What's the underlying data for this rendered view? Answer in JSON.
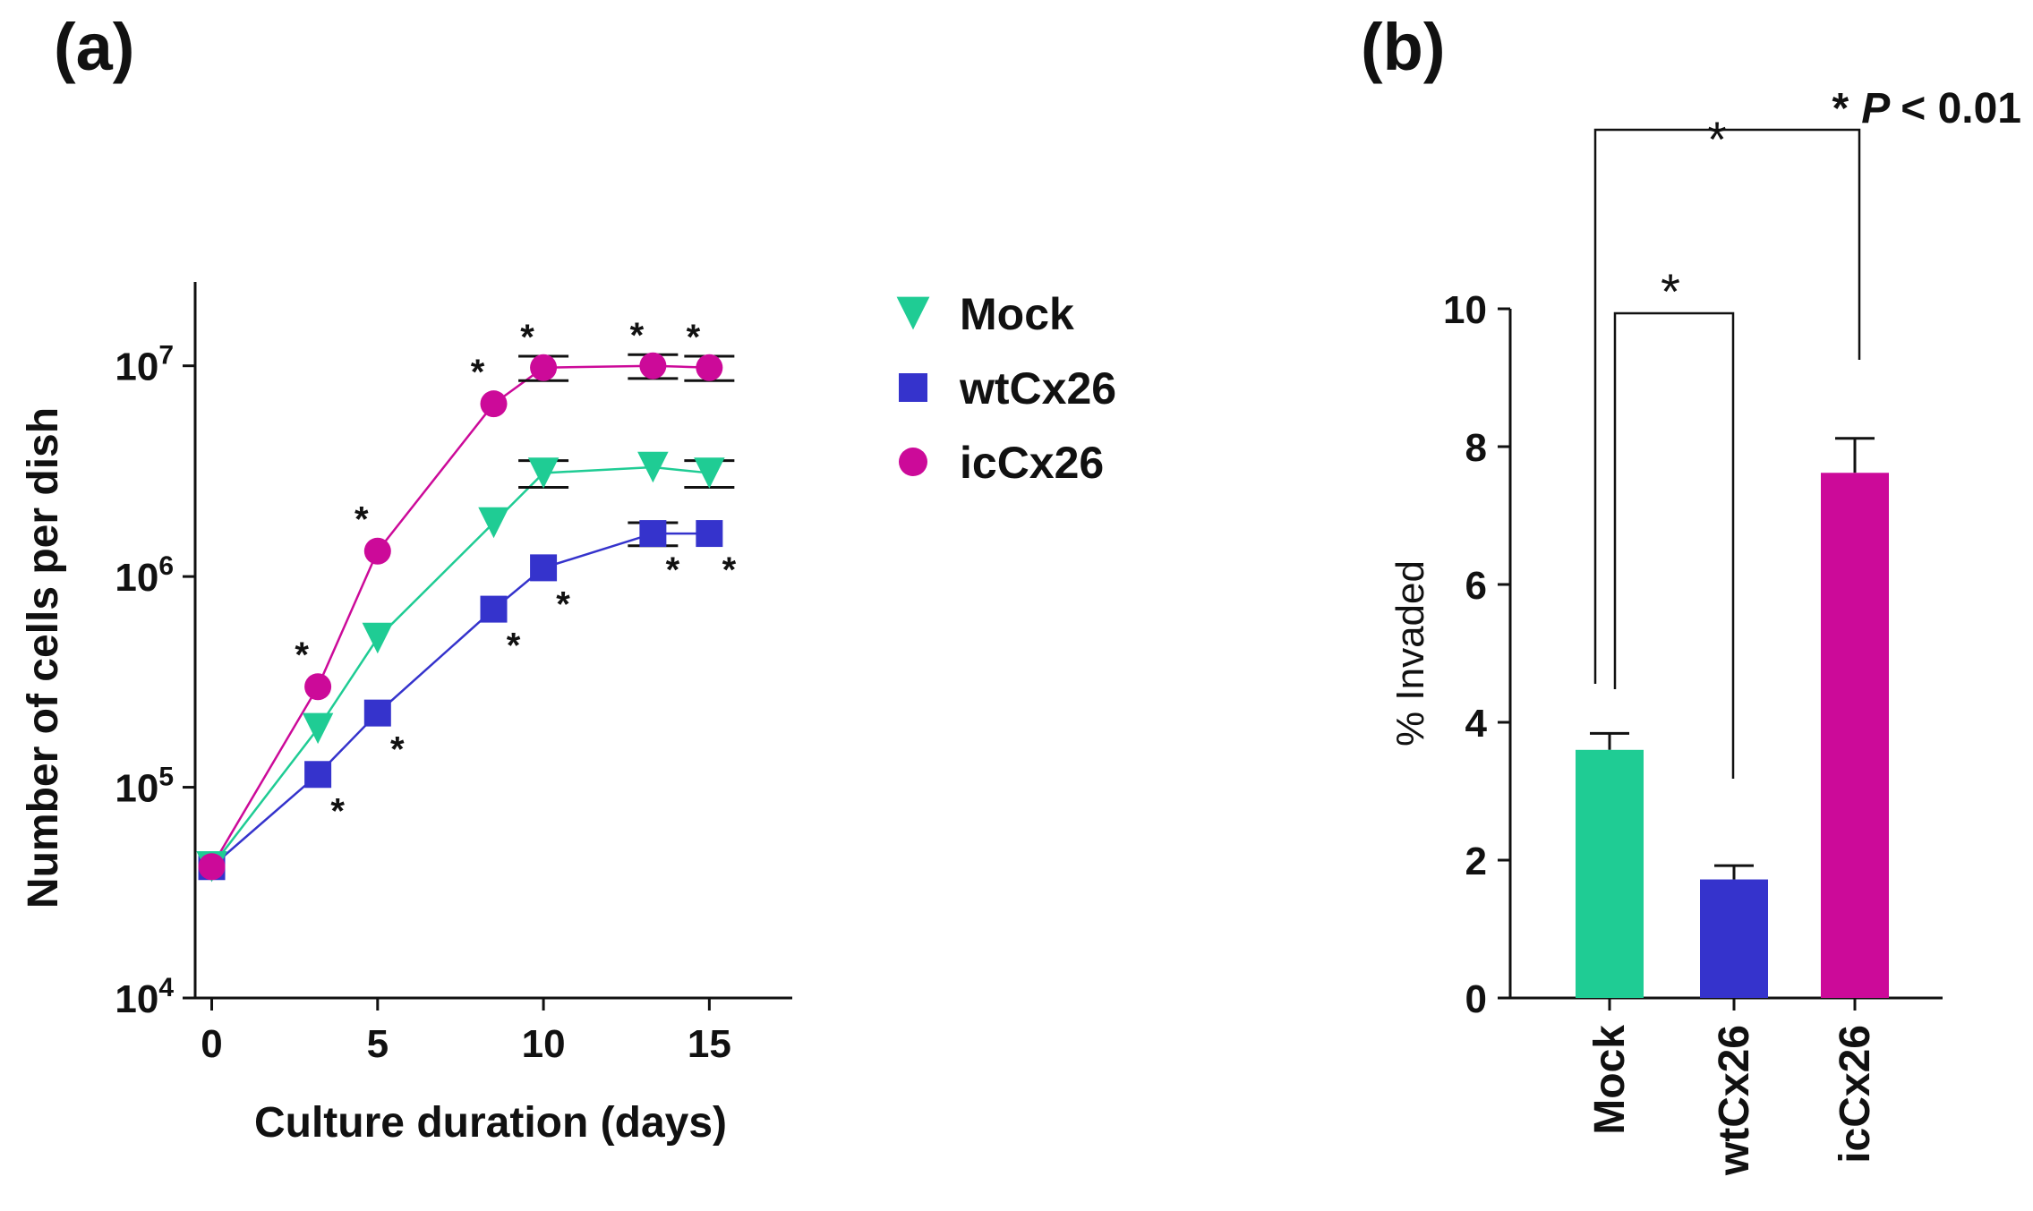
{
  "chart_data": [
    {
      "id": "a",
      "type": "line",
      "panel_label": "(a)",
      "xlabel": "Culture duration (days)",
      "ylabel": "Number of cells per dish",
      "yscale": "log",
      "xlim": [
        -0.5,
        17.5
      ],
      "ylim": [
        10000,
        25000000
      ],
      "x_ticks": [
        0,
        5,
        10,
        15
      ],
      "x_tick_labels": [
        "0",
        "5",
        "10",
        "15"
      ],
      "y_ticks": [
        {
          "value": 10000,
          "base": "10",
          "exp": "4"
        },
        {
          "value": 100000,
          "base": "10",
          "exp": "5"
        },
        {
          "value": 1000000,
          "base": "10",
          "exp": "6"
        },
        {
          "value": 10000000,
          "base": "10",
          "exp": "7"
        }
      ],
      "legend_position": "right",
      "series": [
        {
          "name": "Mock",
          "color": "#1fcc94",
          "marker": "triangle-down",
          "x": [
            0,
            3.2,
            5,
            8.5,
            10,
            13.3,
            15
          ],
          "y": [
            42000,
            190000,
            510000,
            1800000,
            3100000,
            3300000,
            3100000
          ],
          "err": [
            0,
            0,
            0,
            0,
            450000,
            0,
            450000
          ],
          "sig": [
            "",
            "",
            "",
            "",
            "",
            "",
            ""
          ]
        },
        {
          "name": "wtCx26",
          "color": "#3533cc",
          "marker": "square",
          "x": [
            0,
            3.2,
            5,
            8.5,
            10,
            13.3,
            15
          ],
          "y": [
            42000,
            115000,
            225000,
            700000,
            1100000,
            1600000,
            1600000
          ],
          "err": [
            0,
            0,
            0,
            0,
            0,
            200000,
            0
          ],
          "sig": [
            "",
            "*",
            "*",
            "*",
            "*",
            "*",
            "*"
          ]
        },
        {
          "name": "icCx26",
          "color": "#cc0a99",
          "marker": "circle",
          "x": [
            0,
            3.2,
            5,
            8.5,
            10,
            13.3,
            15
          ],
          "y": [
            42000,
            300000,
            1320000,
            6600000,
            9800000,
            10000000,
            9800000
          ],
          "err": [
            0,
            0,
            0,
            0,
            1300000,
            1300000,
            1300000
          ],
          "sig": [
            "",
            "*",
            "*",
            "*",
            "*",
            "*",
            "*"
          ]
        }
      ]
    },
    {
      "id": "b",
      "type": "bar",
      "panel_label": "(b)",
      "ylabel": "% Invaded",
      "categories": [
        "Mock",
        "wtCx26",
        "icCx26"
      ],
      "values": [
        3.6,
        1.72,
        7.62
      ],
      "errors": [
        0.24,
        0.2,
        0.5
      ],
      "colors": [
        "#1fcc94",
        "#3533cc",
        "#cc0a99"
      ],
      "ylim": [
        0,
        10
      ],
      "y_ticks": [
        0,
        2,
        4,
        6,
        8,
        10
      ],
      "y_tick_labels": [
        "0",
        "2",
        "4",
        "6",
        "8",
        "10"
      ],
      "significance": [
        {
          "from": "Mock",
          "to": "wtCx26",
          "label": "*"
        },
        {
          "from": "Mock",
          "to": "icCx26",
          "label": "*"
        }
      ],
      "note": {
        "star": "*",
        "p": "P",
        "rest": "< 0.01"
      }
    }
  ]
}
